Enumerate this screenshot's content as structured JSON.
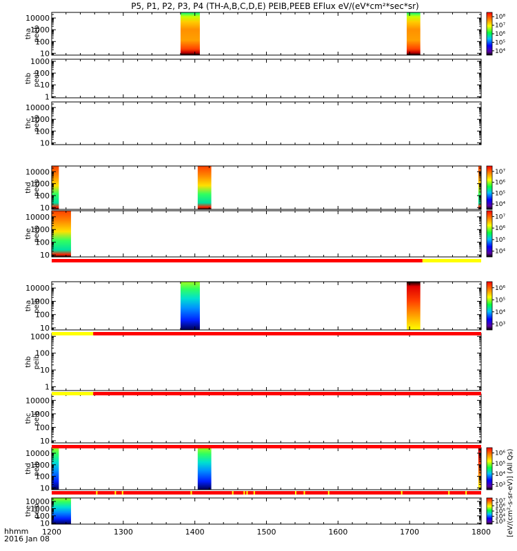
{
  "chart_data": {
    "type": "heatmap",
    "title": "P5, P1, P2, P3, P4 (TH-A,B,C,D,E) PEIB,PEEB EFlux eV/(eV*cm²*sec*sr)",
    "xlim": [
      1200,
      1800
    ],
    "x_ticks": [
      "1200",
      "1300",
      "1400",
      "1500",
      "1600",
      "1700",
      "1800"
    ],
    "time_label_line1": "hhmm",
    "time_label_line2": "2016 Jan 08",
    "colorbar_units": "[eV/(cm²-s-sr-eV)] (All Qs)",
    "panels": [
      {
        "id": "tha-peeb",
        "ylabel_top": "tha",
        "ylabel_bottom": "peeb",
        "y_ticks": [
          "10",
          "100",
          "1000",
          "10000"
        ],
        "yrange": [
          7,
          30000
        ],
        "colorbar": true,
        "cbar_ticks": [
          "10⁴",
          "10⁵",
          "10⁶",
          "10⁷",
          "10⁸"
        ],
        "data_intervals": [
          [
            1380,
            1407
          ],
          [
            1696,
            1715
          ]
        ]
      },
      {
        "id": "thb-peeb",
        "ylabel_top": "thb",
        "ylabel_bottom": "peeb",
        "y_ticks": [
          "1",
          "10",
          "100",
          "1000"
        ],
        "yrange": [
          0.8,
          1500
        ],
        "colorbar": false,
        "data_intervals": []
      },
      {
        "id": "thc-peeb",
        "ylabel_top": "thc",
        "ylabel_bottom": "peeb",
        "y_ticks": [
          "10",
          "100",
          "1000",
          "10000"
        ],
        "yrange": [
          7,
          30000
        ],
        "colorbar": false,
        "data_intervals": []
      },
      {
        "id": "thd-peeb",
        "ylabel_top": "thd",
        "ylabel_bottom": "peeb",
        "y_ticks": [
          "10",
          "100",
          "1000",
          "10000"
        ],
        "yrange": [
          7,
          30000
        ],
        "colorbar": true,
        "cbar_ticks": [
          "10⁴",
          "10⁵",
          "10⁶",
          "10⁷"
        ],
        "data_intervals": [
          [
            1200,
            1210
          ],
          [
            1404,
            1423
          ],
          [
            1796,
            1800
          ]
        ]
      },
      {
        "id": "the-peeb",
        "ylabel_top": "the",
        "ylabel_bottom": "peeb",
        "y_ticks": [
          "10",
          "100",
          "1000",
          "10000"
        ],
        "yrange": [
          7,
          30000
        ],
        "colorbar": true,
        "cbar_ticks": [
          "10⁴",
          "10⁵",
          "10⁶",
          "10⁷"
        ],
        "data_intervals": [
          [
            1200,
            1227
          ]
        ]
      },
      {
        "id": "tha-peib",
        "ylabel_top": "tha",
        "ylabel_bottom": "peib",
        "y_ticks": [
          "10",
          "100",
          "1000",
          "10000"
        ],
        "yrange": [
          7,
          30000
        ],
        "colorbar": true,
        "cbar_ticks": [
          "10³",
          "10⁴",
          "10⁵",
          "10⁶"
        ],
        "data_intervals": [
          [
            1380,
            1407
          ],
          [
            1696,
            1715
          ]
        ]
      },
      {
        "id": "thb-peib",
        "ylabel_top": "thb",
        "ylabel_bottom": "peib",
        "y_ticks": [
          "1",
          "10",
          "100",
          "1000"
        ],
        "yrange": [
          0.6,
          1500
        ],
        "colorbar": false,
        "data_intervals": []
      },
      {
        "id": "thc-peib",
        "ylabel_top": "thc",
        "ylabel_bottom": "peib",
        "y_ticks": [
          "10",
          "100",
          "1000",
          "10000"
        ],
        "yrange": [
          7,
          30000
        ],
        "colorbar": false,
        "data_intervals": []
      },
      {
        "id": "thd-peib",
        "ylabel_top": "thd",
        "ylabel_bottom": "peib",
        "y_ticks": [
          "10",
          "100",
          "1000",
          "10000"
        ],
        "yrange": [
          7,
          30000
        ],
        "colorbar": true,
        "cbar_ticks": [
          "10³",
          "10⁴",
          "10⁵",
          "10⁶"
        ],
        "data_intervals": [
          [
            1200,
            1210
          ],
          [
            1404,
            1423
          ],
          [
            1796,
            1800
          ]
        ]
      },
      {
        "id": "the-peib",
        "ylabel_top": "the",
        "ylabel_bottom": "peib",
        "y_ticks": [
          "10",
          "100",
          "1000",
          "10000"
        ],
        "yrange": [
          7,
          30000
        ],
        "colorbar": true,
        "cbar_ticks": [
          "10³",
          "10⁴",
          "10⁵",
          "10⁶",
          "10⁷"
        ],
        "data_intervals": [
          [
            1200,
            1227
          ]
        ]
      }
    ],
    "flag_bars": [
      {
        "after_panel": 4,
        "segments": [
          {
            "from": 1200,
            "to": 1718,
            "color": "#ff0000"
          },
          {
            "from": 1718,
            "to": 1800,
            "color": "#ffff00"
          }
        ]
      },
      {
        "after_panel": 5,
        "segments": [
          {
            "from": 1200,
            "to": 1258,
            "color": "#ffff00"
          },
          {
            "from": 1258,
            "to": 1800,
            "color": "#ff0000"
          }
        ]
      },
      {
        "after_panel": 6,
        "segments": [
          {
            "from": 1200,
            "to": 1258,
            "color": "#ffff00"
          },
          {
            "from": 1258,
            "to": 1800,
            "color": "#ff0000"
          }
        ]
      },
      {
        "after_panel": 7,
        "segments": [
          {
            "from": 1200,
            "to": 1800,
            "color": "#ff0000"
          }
        ]
      },
      {
        "after_panel": 8,
        "segments": [
          {
            "from": 1200,
            "to": 1800,
            "color": "#ff0000"
          }
        ],
        "marks": [
          1262,
          1288,
          1298,
          1394,
          1452,
          1468,
          1472,
          1482,
          1540,
          1552,
          1586,
          1688,
          1754,
          1778
        ]
      }
    ]
  }
}
